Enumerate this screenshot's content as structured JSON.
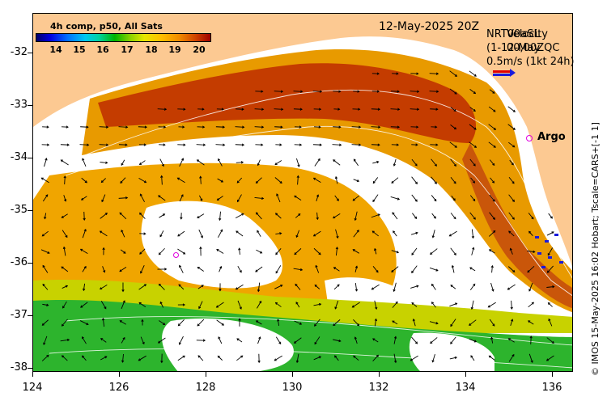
{
  "colorbar": {
    "title": "4h comp, p50, All Sats",
    "labels": [
      "14",
      "15",
      "16",
      "17",
      "18",
      "19",
      "20"
    ],
    "min": 13.3,
    "max": 20.6
  },
  "header": {
    "date": "12-May-2025 20Z"
  },
  "legend": {
    "line1_a": "NRT00aSL",
    "line1_b": "Velocity",
    "line2_a": "(1-12-May",
    "line2_b": "00,00ZQC",
    "line3": "0.5m/s (1kt 24h)",
    "arrow_speed_ms": 0.5
  },
  "argo": {
    "label": "Argo"
  },
  "axes": {
    "y_ticks": [
      "-32",
      "-33",
      "-34",
      "-35",
      "-36",
      "-37",
      "-38"
    ],
    "x_ticks": [
      "124",
      "126",
      "128",
      "130",
      "132",
      "134",
      "136"
    ],
    "lon_range": [
      124,
      136.5
    ],
    "lat_range": [
      -31.3,
      -38.1
    ]
  },
  "colors": {
    "land": "#fcc992",
    "warm": "#c43c00",
    "mid": "#e89a00",
    "cool": "#00b400",
    "arrow": "#000000"
  },
  "credit": "© IMOS 15-May-2025 16:02 Hobart; Tscale=CARS+[-1 1]"
}
